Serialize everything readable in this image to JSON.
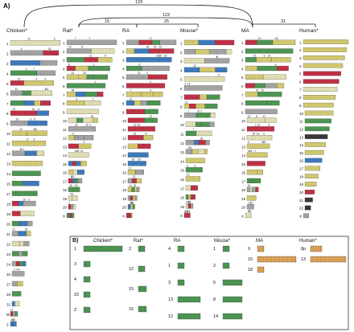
{
  "panel_a": {
    "label": "A)",
    "species": [
      "Chicken*",
      "Rat*",
      "RA",
      "Mouse*",
      "MA",
      "Human*"
    ],
    "distances": [
      {
        "value": "129",
        "from": 0,
        "to": 4,
        "level": 0
      },
      {
        "value": "122",
        "from": 1,
        "to": 4,
        "level": 1
      },
      {
        "value": "25",
        "from": 2,
        "to": 3,
        "level": 2
      },
      {
        "value": "15",
        "from": 1,
        "to": 2,
        "level": 2
      },
      {
        "value": "31",
        "from": 4,
        "to": 5,
        "level": 2
      }
    ],
    "chromosomes": {
      "chicken": [
        "1",
        "2",
        "3",
        "4",
        "5",
        "6",
        "7",
        "8",
        "9",
        "10",
        "11",
        "12",
        "13",
        "14",
        "15",
        "17",
        "18",
        "19",
        "20",
        "21",
        "22",
        "23",
        "24",
        "26",
        "27",
        "28",
        "32",
        "W",
        "Z"
      ],
      "rat": [
        "1",
        "2",
        "3",
        "4",
        "5",
        "6",
        "7",
        "8",
        "9",
        "10",
        "11",
        "12",
        "13",
        "14",
        "15",
        "16",
        "17",
        "18",
        "19",
        "20",
        "X"
      ],
      "ra": [
        "1",
        "2",
        "3",
        "4",
        "5",
        "6",
        "7",
        "8",
        "9",
        "10",
        "11",
        "12",
        "13",
        "14",
        "15",
        "16",
        "17",
        "18",
        "19",
        "20",
        "X"
      ],
      "mouse": [
        "1",
        "2",
        "3",
        "4",
        "5",
        "6",
        "7",
        "8",
        "9",
        "10",
        "11",
        "12",
        "13",
        "14",
        "15",
        "16",
        "17",
        "18",
        "19",
        "X"
      ],
      "ma": [
        "1",
        "2",
        "3",
        "4",
        "5",
        "6",
        "7",
        "8",
        "9",
        "10",
        "11",
        "12",
        "13",
        "14",
        "15",
        "16",
        "17",
        "18",
        "19",
        "20",
        "X"
      ],
      "human": [
        "1",
        "2",
        "3",
        "4",
        "5",
        "6",
        "7",
        "8",
        "9",
        "10",
        "11",
        "12",
        "13",
        "14",
        "15",
        "16",
        "17",
        "18",
        "19",
        "20",
        "21",
        "22",
        "X"
      ]
    },
    "colors": {
      "chicken": "#e0a55a",
      "rat": "#4f9a55",
      "ra": "#d8cf72",
      "mouse": "#c63347",
      "ma": "#3f7ec2",
      "human": "#3a3a3a",
      "grey": "#a8a8a8",
      "pale": "#e8e4b8"
    }
  },
  "panel_b": {
    "label": "B)",
    "species": [
      "Chicken*",
      "Rat*",
      "RA",
      "Mouse*",
      "MA",
      "Human*"
    ],
    "chicken": [
      "1",
      "3",
      "4",
      "22",
      "Z"
    ],
    "rat": [
      "2",
      "12",
      "15",
      "16"
    ],
    "ra": [
      "4",
      "1",
      "3",
      "13",
      "12"
    ],
    "mouse": [
      "1",
      "2",
      "5",
      "8",
      "14"
    ],
    "ma": [
      "9",
      "15",
      "18"
    ],
    "human": [
      "8p",
      "13"
    ]
  }
}
